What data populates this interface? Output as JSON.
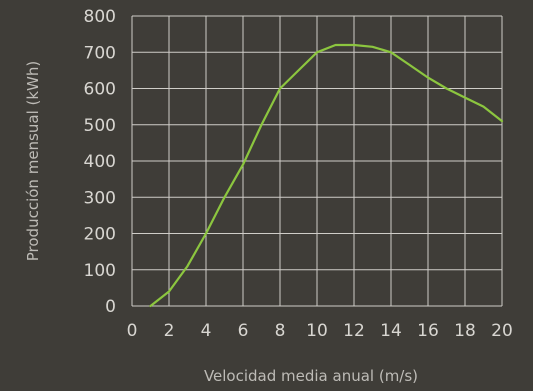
{
  "colors": {
    "background": "#3f3d38",
    "grid": "#cfcdc8",
    "line": "#8cc63f",
    "text": "#d8d6d1",
    "label": "#bdbbb6"
  },
  "chart_data": {
    "type": "line",
    "title": "",
    "xlabel": "Velocidad media anual (m/s)",
    "ylabel": "Producción mensual (kWh)",
    "xlim": [
      0,
      20
    ],
    "ylim": [
      0,
      800
    ],
    "xticks": [
      "0",
      "2",
      "4",
      "6",
      "8",
      "10",
      "12",
      "14",
      "16",
      "18",
      "20"
    ],
    "yticks": [
      "0",
      "100",
      "200",
      "300",
      "400",
      "500",
      "600",
      "700",
      "800"
    ],
    "grid": true,
    "legend": "none",
    "series": [
      {
        "x": [
          1,
          2,
          3,
          4,
          5,
          6,
          7,
          8,
          9,
          10,
          11,
          12,
          13,
          14,
          15,
          16,
          17,
          18,
          19,
          20
        ],
        "y": [
          0,
          40,
          110,
          200,
          300,
          390,
          500,
          600,
          650,
          700,
          720,
          720,
          715,
          700,
          665,
          630,
          600,
          575,
          550,
          510
        ]
      }
    ]
  }
}
